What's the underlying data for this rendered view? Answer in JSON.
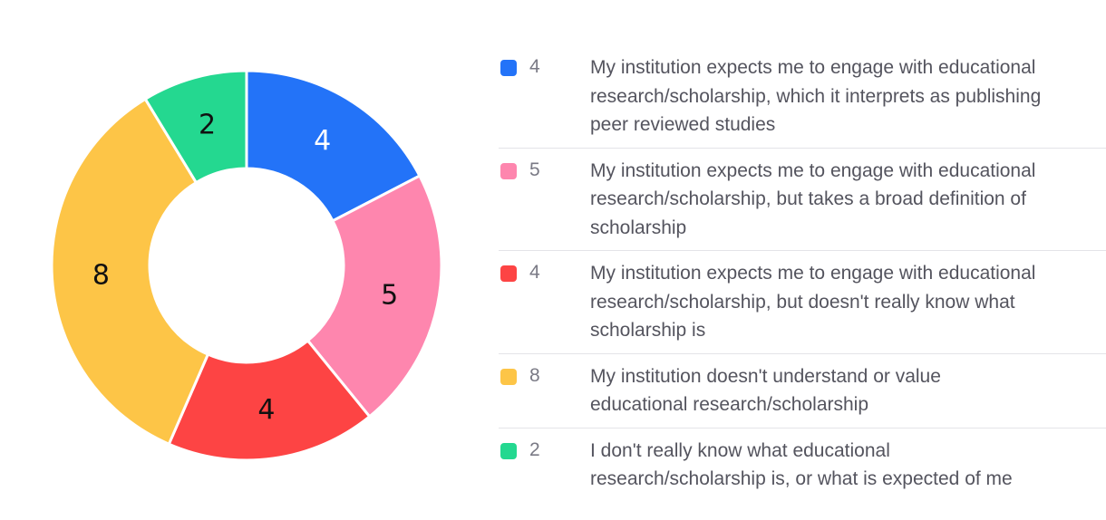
{
  "chart_data": {
    "type": "pie",
    "series": [
      {
        "label": "My institution expects me to engage with educational research/scholarship, which it interprets as publishing peer reviewed studies",
        "value": 4,
        "color": "#2373f8"
      },
      {
        "label": "My institution expects me to engage with educational research/scholarship, but takes a broad definition of scholarship",
        "value": 5,
        "color": "#fe86ae"
      },
      {
        "label": "My institution expects me to engage with educational research/scholarship, but doesn't really know what scholarship is",
        "value": 4,
        "color": "#fd4444"
      },
      {
        "label": "My institution doesn't understand or value educational research/scholarship",
        "value": 8,
        "color": "#fdc547"
      },
      {
        "label": "I don't really know what educational research/scholarship is, or what is expected of me",
        "value": 2,
        "color": "#24d890"
      }
    ],
    "legend_position": "right",
    "label_colors": {
      "default": "#111111",
      "on_blue": "#ffffff"
    }
  }
}
